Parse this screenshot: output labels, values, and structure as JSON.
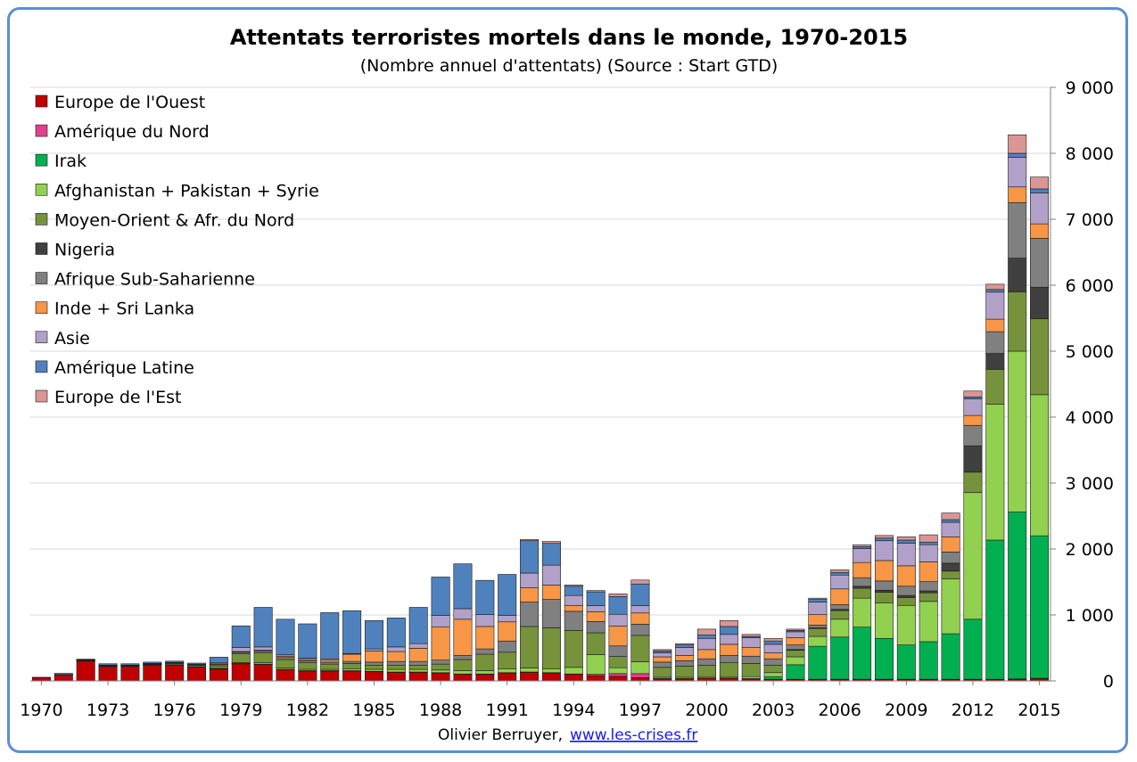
{
  "chart_data": {
    "type": "bar",
    "stacked": true,
    "title": "Attentats terroristes mortels dans le monde, 1970-2015",
    "subtitle": "(Nombre annuel d'attentats) (Source : Start GTD)",
    "xlabel": "",
    "ylabel": "",
    "ylim": [
      0,
      9000
    ],
    "y_ticks": [
      0,
      1000,
      2000,
      3000,
      4000,
      5000,
      6000,
      7000,
      8000,
      9000
    ],
    "y_tick_labels": [
      "0",
      "1 000",
      "2 000",
      "3 000",
      "4 000",
      "5 000",
      "6 000",
      "7 000",
      "8 000",
      "9 000"
    ],
    "y_axis_side": "right",
    "grid": true,
    "legend_position": "top-left",
    "x_tick_labels": [
      "1970",
      "1973",
      "1976",
      "1979",
      "1982",
      "1985",
      "1988",
      "1991",
      "1994",
      "1997",
      "2000",
      "2003",
      "2006",
      "2009",
      "2012",
      "2015"
    ],
    "categories": [
      "1970",
      "1971",
      "1972",
      "1973",
      "1974",
      "1975",
      "1976",
      "1977",
      "1978",
      "1979",
      "1980",
      "1981",
      "1982",
      "1983",
      "1984",
      "1985",
      "1986",
      "1987",
      "1988",
      "1989",
      "1990",
      "1991",
      "1992",
      "1993",
      "1994",
      "1995",
      "1996",
      "1997",
      "1998",
      "1999",
      "2000",
      "2001",
      "2002",
      "2003",
      "2004",
      "2005",
      "2006",
      "2007",
      "2008",
      "2009",
      "2010",
      "2011",
      "2012",
      "2013",
      "2014",
      "2015"
    ],
    "series": [
      {
        "name": "Europe de l'Ouest",
        "color": "#c00000",
        "values": [
          50,
          90,
          300,
          220,
          220,
          240,
          240,
          210,
          180,
          260,
          250,
          170,
          150,
          150,
          150,
          140,
          130,
          130,
          120,
          100,
          100,
          120,
          130,
          120,
          100,
          80,
          70,
          50,
          30,
          30,
          40,
          40,
          30,
          20,
          20,
          20,
          20,
          20,
          20,
          20,
          20,
          20,
          20,
          20,
          20,
          30
        ]
      },
      {
        "name": "Amérique du Nord",
        "color": "#e0408f",
        "values": [
          5,
          5,
          5,
          5,
          5,
          5,
          5,
          5,
          5,
          5,
          5,
          5,
          5,
          5,
          5,
          5,
          5,
          5,
          5,
          5,
          5,
          5,
          5,
          5,
          5,
          20,
          40,
          60,
          5,
          5,
          5,
          5,
          5,
          5,
          5,
          5,
          5,
          5,
          5,
          5,
          5,
          5,
          5,
          5,
          10,
          10
        ]
      },
      {
        "name": "Irak",
        "color": "#00b050",
        "values": [
          0,
          0,
          0,
          0,
          0,
          0,
          0,
          0,
          0,
          0,
          0,
          0,
          0,
          0,
          0,
          0,
          0,
          0,
          0,
          0,
          0,
          0,
          0,
          0,
          0,
          0,
          0,
          0,
          0,
          0,
          0,
          0,
          0,
          40,
          220,
          500,
          640,
          790,
          620,
          520,
          570,
          690,
          910,
          2110,
          2530,
          2160
        ]
      },
      {
        "name": "Afghanistan + Pakistan + Syrie",
        "color": "#92d050",
        "values": [
          0,
          0,
          0,
          0,
          0,
          0,
          0,
          0,
          5,
          10,
          20,
          20,
          20,
          20,
          30,
          30,
          40,
          40,
          40,
          50,
          50,
          60,
          60,
          60,
          100,
          300,
          90,
          180,
          20,
          20,
          20,
          20,
          30,
          60,
          120,
          150,
          270,
          440,
          540,
          600,
          610,
          830,
          1920,
          2060,
          2440,
          2140
        ]
      },
      {
        "name": "Moyen-Orient & Afr. du Nord",
        "color": "#76933c",
        "values": [
          0,
          0,
          10,
          10,
          10,
          10,
          20,
          20,
          40,
          140,
          150,
          130,
          100,
          80,
          80,
          60,
          60,
          60,
          90,
          170,
          250,
          250,
          630,
          620,
          560,
          330,
          170,
          400,
          150,
          170,
          170,
          210,
          200,
          110,
          100,
          120,
          130,
          150,
          160,
          120,
          130,
          120,
          310,
          530,
          900,
          1150
        ]
      },
      {
        "name": "Nigeria",
        "color": "#404040",
        "values": [
          0,
          0,
          0,
          0,
          0,
          0,
          0,
          0,
          0,
          0,
          0,
          0,
          0,
          0,
          0,
          0,
          0,
          0,
          0,
          0,
          0,
          0,
          0,
          0,
          0,
          0,
          0,
          0,
          0,
          0,
          0,
          0,
          0,
          0,
          10,
          10,
          20,
          30,
          30,
          30,
          30,
          120,
          400,
          240,
          510,
          480
        ]
      },
      {
        "name": "Afrique Sub-Saharienne",
        "color": "#808080",
        "values": [
          0,
          0,
          5,
          5,
          5,
          5,
          10,
          10,
          20,
          20,
          30,
          30,
          30,
          30,
          30,
          50,
          60,
          60,
          60,
          60,
          80,
          170,
          370,
          430,
          290,
          170,
          160,
          170,
          80,
          80,
          100,
          110,
          110,
          100,
          70,
          40,
          70,
          130,
          140,
          140,
          140,
          170,
          310,
          330,
          840,
          740
        ]
      },
      {
        "name": "Inde + Sri Lanka",
        "color": "#f79646",
        "values": [
          0,
          0,
          0,
          0,
          0,
          5,
          5,
          5,
          10,
          10,
          10,
          20,
          20,
          30,
          110,
          170,
          150,
          200,
          500,
          550,
          340,
          290,
          220,
          220,
          90,
          150,
          300,
          170,
          80,
          80,
          140,
          170,
          130,
          90,
          110,
          160,
          240,
          230,
          310,
          310,
          300,
          230,
          150,
          190,
          240,
          220
        ]
      },
      {
        "name": "Asie",
        "color": "#b1a0c7",
        "values": [
          0,
          0,
          0,
          0,
          0,
          0,
          0,
          0,
          20,
          60,
          50,
          20,
          20,
          20,
          10,
          30,
          70,
          70,
          180,
          160,
          180,
          100,
          220,
          300,
          150,
          90,
          180,
          110,
          60,
          120,
          170,
          150,
          150,
          130,
          90,
          190,
          210,
          210,
          300,
          340,
          260,
          220,
          250,
          410,
          450,
          470
        ]
      },
      {
        "name": "Amérique Latine",
        "color": "#4f81bd",
        "values": [
          0,
          20,
          10,
          20,
          20,
          20,
          20,
          20,
          80,
          330,
          600,
          540,
          520,
          700,
          650,
          430,
          440,
          550,
          580,
          680,
          520,
          620,
          490,
          330,
          140,
          210,
          270,
          330,
          30,
          40,
          50,
          120,
          20,
          50,
          20,
          40,
          40,
          30,
          40,
          50,
          40,
          40,
          30,
          40,
          60,
          60
        ]
      },
      {
        "name": "Europe de l'Est",
        "color": "#d99694",
        "values": [
          0,
          0,
          0,
          0,
          0,
          0,
          0,
          0,
          0,
          0,
          0,
          0,
          0,
          0,
          0,
          0,
          0,
          0,
          0,
          0,
          0,
          0,
          20,
          30,
          20,
          20,
          40,
          60,
          20,
          20,
          90,
          90,
          30,
          40,
          20,
          20,
          40,
          30,
          40,
          50,
          110,
          100,
          90,
          80,
          280,
          180
        ]
      }
    ],
    "footer_author": "Olivier Berruyer,",
    "footer_link": "www.les-crises.fr"
  }
}
